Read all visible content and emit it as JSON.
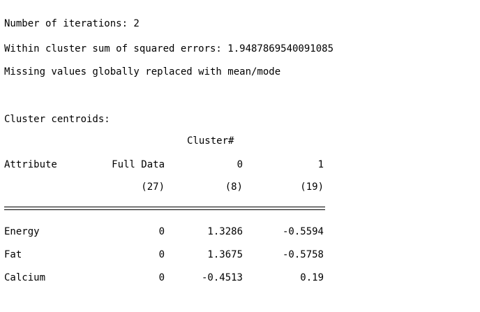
{
  "summary": {
    "iterations": "Number of iterations: 2",
    "sse": "Within cluster sum of squared errors: 1.9487869540091085",
    "missing": "Missing values globally replaced with mean/mode"
  },
  "centroids": {
    "title": "Cluster centroids:",
    "cluster_header": "Cluster#",
    "attribute_header": "Attribute",
    "columns": [
      "Full Data",
      "0",
      "1"
    ],
    "counts": [
      "(27)",
      "(8)",
      "(19)"
    ],
    "rows": [
      {
        "attribute": "Energy",
        "values": [
          "0",
          "1.3286",
          "-0.5594"
        ]
      },
      {
        "attribute": "Fat",
        "values": [
          "0",
          "1.3675",
          "-0.5758"
        ]
      },
      {
        "attribute": "Calcium",
        "values": [
          "0",
          "-0.4513",
          "0.19"
        ]
      }
    ]
  }
}
